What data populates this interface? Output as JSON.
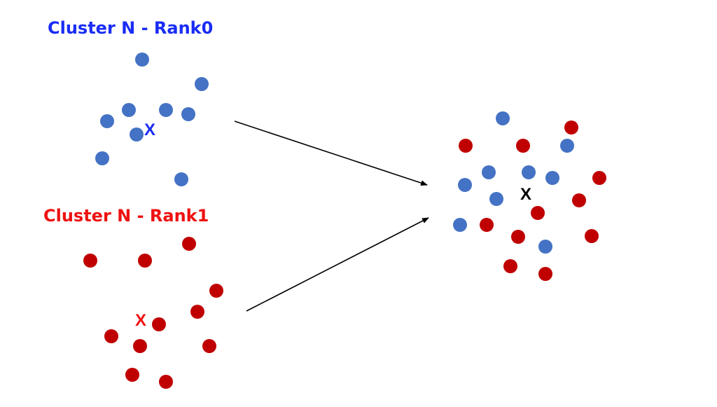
{
  "colors": {
    "rank0": "#1a2cf5",
    "rank1": "#ee1111",
    "dot_blue": "#4472c4",
    "dot_red": "#c00000",
    "merged_centroid": "#000000",
    "arrow": "#000000"
  },
  "clusters": [
    {
      "label": "Cluster N - Rank0",
      "centroid_mark": "X"
    },
    {
      "label": "Cluster N - Rank1",
      "centroid_mark": "X"
    }
  ],
  "merged": {
    "centroid_mark": "X"
  }
}
